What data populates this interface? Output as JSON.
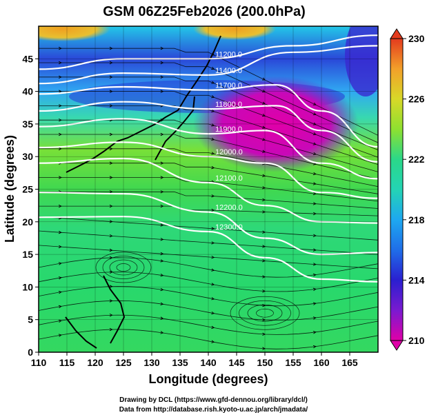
{
  "chart_data": {
    "type": "heatmap",
    "title": "GSM 06Z25Feb2026 (200.0hPa)",
    "xlabel": "Longitude (degrees)",
    "ylabel": "Latitude (degrees)",
    "xlim": [
      110,
      170
    ],
    "ylim": [
      0,
      50
    ],
    "xticks": [
      110,
      115,
      120,
      125,
      130,
      135,
      140,
      145,
      150,
      155,
      160,
      165
    ],
    "yticks": [
      0,
      5,
      10,
      15,
      20,
      25,
      30,
      35,
      40,
      45
    ],
    "colorbar": {
      "ticks": [
        210,
        214,
        218,
        222,
        226,
        230
      ],
      "range": [
        210,
        230
      ],
      "colors": [
        "#e000a8",
        "#2a1fd0",
        "#1ea8f0",
        "#2ad889",
        "#a6e22c",
        "#f2a02a",
        "#e43b1e"
      ]
    },
    "contours": [
      {
        "label": "11200.0",
        "lat_at_lon": [
          [
            110,
            43.4
          ],
          [
            125,
            45.0
          ],
          [
            140,
            45.0
          ],
          [
            155,
            47.0
          ],
          [
            170,
            48.6
          ]
        ]
      },
      {
        "label": "11400.0",
        "lat_at_lon": [
          [
            110,
            41.2
          ],
          [
            125,
            42.8
          ],
          [
            140,
            42.5
          ],
          [
            155,
            46.0
          ],
          [
            170,
            47.0
          ]
        ]
      },
      {
        "label": "11700.0",
        "lat_at_lon": [
          [
            110,
            39.6
          ],
          [
            125,
            40.7
          ],
          [
            140,
            40.2
          ],
          [
            152,
            41.0
          ],
          [
            160,
            37.0
          ],
          [
            170,
            31.5
          ]
        ]
      },
      {
        "label": "11800.0",
        "lat_at_lon": [
          [
            110,
            37.0
          ],
          [
            125,
            38.4
          ],
          [
            140,
            37.3
          ],
          [
            152,
            37.8
          ],
          [
            160,
            34.0
          ],
          [
            170,
            29.2
          ]
        ]
      },
      {
        "label": "11900.0",
        "lat_at_lon": [
          [
            110,
            34.6
          ],
          [
            125,
            35.8
          ],
          [
            140,
            33.5
          ],
          [
            150,
            34.0
          ],
          [
            160,
            29.0
          ],
          [
            170,
            26.6
          ]
        ]
      },
      {
        "label": "12000.0",
        "lat_at_lon": [
          [
            110,
            31.4
          ],
          [
            125,
            32.2
          ],
          [
            140,
            30.0
          ],
          [
            150,
            29.0
          ],
          [
            160,
            24.5
          ],
          [
            170,
            23.6
          ]
        ]
      },
      {
        "label": "12100.0",
        "lat_at_lon": [
          [
            110,
            29.0
          ],
          [
            125,
            29.7
          ],
          [
            140,
            26.0
          ],
          [
            150,
            22.5
          ],
          [
            160,
            20.0
          ],
          [
            170,
            19.8
          ]
        ]
      },
      {
        "label": "12200.0",
        "lat_at_lon": [
          [
            110,
            24.5
          ],
          [
            125,
            24.3
          ],
          [
            140,
            21.5
          ],
          [
            150,
            17.5
          ],
          [
            160,
            15.0
          ],
          [
            170,
            15.3
          ]
        ]
      },
      {
        "label": "12300.0",
        "lat_at_lon": [
          [
            110,
            20.7
          ],
          [
            125,
            20.8
          ],
          [
            140,
            18.5
          ],
          [
            150,
            14.5
          ],
          [
            160,
            11.2
          ],
          [
            170,
            10.8
          ]
        ]
      }
    ],
    "fields": {
      "fill": "temperature (K), 210–230",
      "streamlines": "wind at 200.0hPa",
      "contour": "geopotential height"
    },
    "grid": true
  },
  "credits": {
    "line1": "Drawing by DCL (https://www.gfd-dennou.org/library/dcl/)",
    "line2": "Data from http://database.rish.kyoto-u.ac.jp/arch/jmadata/"
  }
}
